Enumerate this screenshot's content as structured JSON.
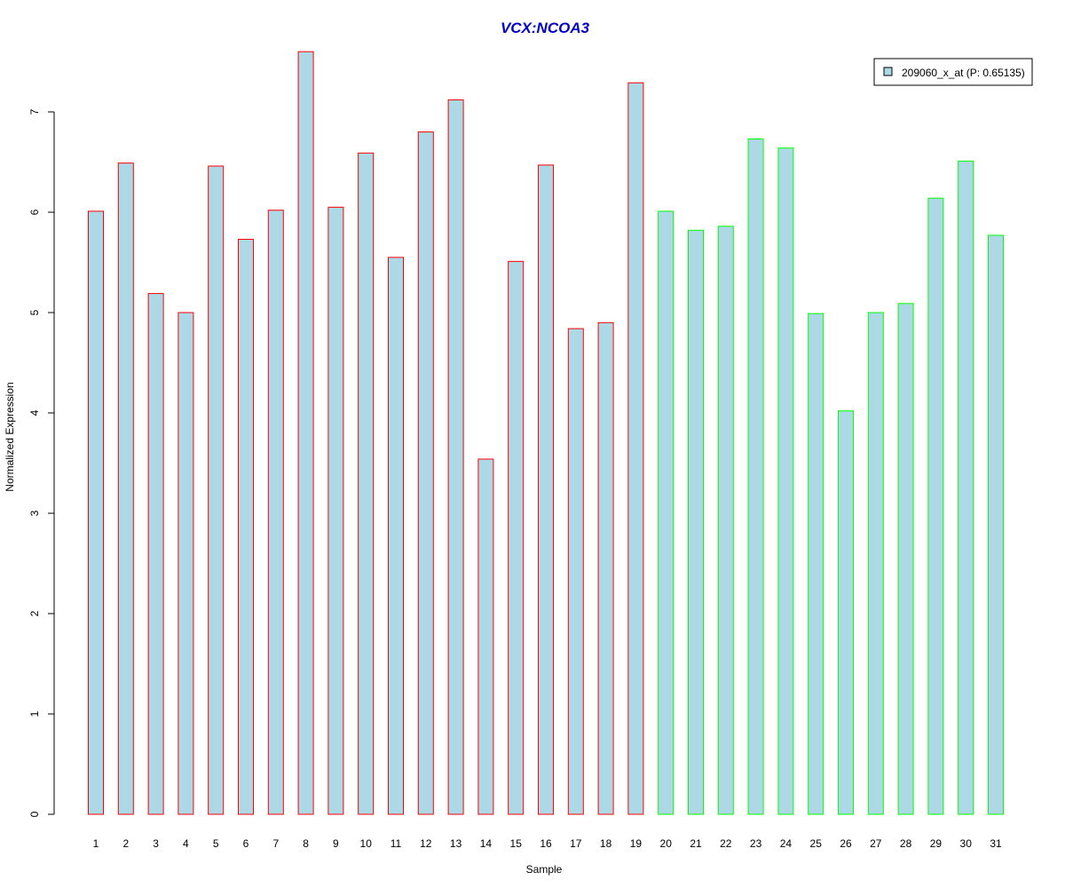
{
  "chart_data": {
    "type": "bar",
    "title": "VCX:NCOA3",
    "xlabel": "Sample",
    "ylabel": "Normalized Expression",
    "ylim": [
      0,
      7.6
    ],
    "yticks": [
      0,
      1,
      2,
      3,
      4,
      5,
      6,
      7
    ],
    "categories": [
      "1",
      "2",
      "3",
      "4",
      "5",
      "6",
      "7",
      "8",
      "9",
      "10",
      "11",
      "12",
      "13",
      "14",
      "15",
      "16",
      "17",
      "18",
      "19",
      "20",
      "21",
      "22",
      "23",
      "24",
      "25",
      "26",
      "27",
      "28",
      "29",
      "30",
      "31"
    ],
    "values": [
      6.01,
      6.49,
      5.19,
      5.0,
      6.46,
      5.73,
      6.02,
      7.6,
      6.05,
      6.59,
      5.55,
      6.8,
      7.12,
      3.54,
      5.51,
      6.47,
      4.84,
      4.9,
      7.29,
      6.01,
      5.82,
      5.86,
      6.73,
      6.64,
      4.99,
      4.02,
      5.0,
      5.09,
      6.14,
      6.51,
      5.77
    ],
    "groups": [
      {
        "samples": "1-19",
        "border_color": "#ff0000"
      },
      {
        "samples": "20-31",
        "border_color": "#00ff00"
      }
    ],
    "bar_fill": "#add8e6",
    "legend": {
      "label": "209060_x_at (P: 0.65135)",
      "position": "top-right"
    },
    "title_color": "#0000cd",
    "grid": false
  }
}
